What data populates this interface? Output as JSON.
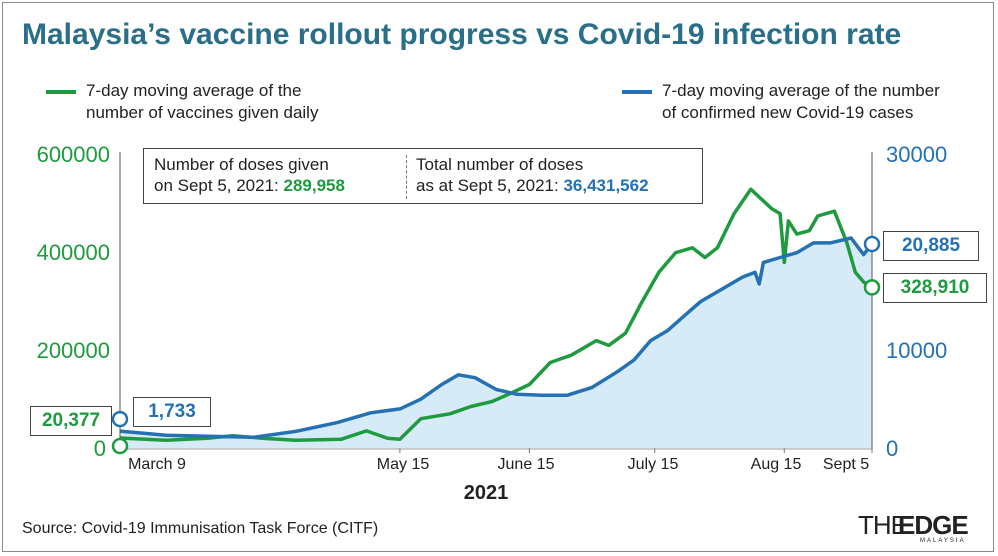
{
  "title": "Malaysia’s vaccine rollout progress vs Covid-19 infection rate",
  "legend": {
    "vaccines_line1": "7-day moving average of the",
    "vaccines_line2": "number of vaccines given daily",
    "cases_line1": "7-day moving average of the number",
    "cases_line2": "of confirmed new Covid-19 cases"
  },
  "infobox": {
    "doses_line1": "Number of doses given",
    "doses_line2_prefix": "on Sept 5, 2021: ",
    "doses_value": "289,958",
    "total_line1": "Total number of doses",
    "total_line2_prefix": "as at Sept 5, 2021: ",
    "total_value": "36,431,562"
  },
  "callouts": {
    "start_vaccines": "20,377",
    "start_cases": "1,733",
    "end_cases": "20,885",
    "end_vaccines": "328,910"
  },
  "year_label": "2021",
  "source": "Source: Covid-19 Immunisation Task Force (CITF)",
  "logo": {
    "the": "THE",
    "edge": "EDGE",
    "sub": "MALAYSIA"
  },
  "colors": {
    "vaccines": "#1f9b3f",
    "cases": "#2471b3",
    "area": "#d6eaf8",
    "title": "#2a6f8a"
  },
  "chart_data": {
    "type": "line",
    "x_ticks": [
      "March 9",
      "May 15",
      "June 15",
      "July 15",
      "Aug 15",
      "Sept 5"
    ],
    "y_left_ticks": [
      "600000",
      "400000",
      "200000",
      "0"
    ],
    "y_right_ticks": [
      "30000",
      "20000",
      "10000",
      "0"
    ],
    "ylim_left": [
      0,
      600000
    ],
    "ylim_right": [
      0,
      30000
    ],
    "series": [
      {
        "name": "7-day moving average of the number of vaccines given daily",
        "axis": "left",
        "points": [
          [
            "2021-03-09",
            20377
          ],
          [
            "2021-03-20",
            16000
          ],
          [
            "2021-03-30",
            20000
          ],
          [
            "2021-04-05",
            25000
          ],
          [
            "2021-04-12",
            20000
          ],
          [
            "2021-04-20",
            16000
          ],
          [
            "2021-05-01",
            18000
          ],
          [
            "2021-05-07",
            35000
          ],
          [
            "2021-05-12",
            20000
          ],
          [
            "2021-05-15",
            18000
          ],
          [
            "2021-05-20",
            60000
          ],
          [
            "2021-05-27",
            70000
          ],
          [
            "2021-06-01",
            85000
          ],
          [
            "2021-06-06",
            95000
          ],
          [
            "2021-06-10",
            110000
          ],
          [
            "2021-06-15",
            130000
          ],
          [
            "2021-06-20",
            175000
          ],
          [
            "2021-06-25",
            190000
          ],
          [
            "2021-07-01",
            220000
          ],
          [
            "2021-07-04",
            210000
          ],
          [
            "2021-07-08",
            235000
          ],
          [
            "2021-07-12",
            300000
          ],
          [
            "2021-07-16",
            360000
          ],
          [
            "2021-07-20",
            400000
          ],
          [
            "2021-07-24",
            410000
          ],
          [
            "2021-07-27",
            390000
          ],
          [
            "2021-07-30",
            410000
          ],
          [
            "2021-08-03",
            480000
          ],
          [
            "2021-08-07",
            530000
          ],
          [
            "2021-08-12",
            490000
          ],
          [
            "2021-08-14",
            480000
          ],
          [
            "2021-08-15",
            380000
          ],
          [
            "2021-08-16",
            465000
          ],
          [
            "2021-08-18",
            438000
          ],
          [
            "2021-08-21",
            445000
          ],
          [
            "2021-08-23",
            475000
          ],
          [
            "2021-08-27",
            485000
          ],
          [
            "2021-08-30",
            420000
          ],
          [
            "2021-09-01",
            360000
          ],
          [
            "2021-09-03",
            340000
          ],
          [
            "2021-09-05",
            328910
          ]
        ]
      },
      {
        "name": "7-day moving average of the number of confirmed new Covid-19 cases",
        "axis": "right",
        "points": [
          [
            "2021-03-09",
            1733
          ],
          [
            "2021-03-20",
            1300
          ],
          [
            "2021-03-30",
            1200
          ],
          [
            "2021-04-10",
            1100
          ],
          [
            "2021-04-20",
            1700
          ],
          [
            "2021-04-30",
            2600
          ],
          [
            "2021-05-08",
            3600
          ],
          [
            "2021-05-15",
            4000
          ],
          [
            "2021-05-20",
            5000
          ],
          [
            "2021-05-25",
            6500
          ],
          [
            "2021-05-29",
            7500
          ],
          [
            "2021-06-02",
            7200
          ],
          [
            "2021-06-07",
            6000
          ],
          [
            "2021-06-12",
            5500
          ],
          [
            "2021-06-18",
            5400
          ],
          [
            "2021-06-24",
            5400
          ],
          [
            "2021-06-30",
            6200
          ],
          [
            "2021-07-06",
            7800
          ],
          [
            "2021-07-10",
            9000
          ],
          [
            "2021-07-14",
            11000
          ],
          [
            "2021-07-18",
            12000
          ],
          [
            "2021-07-22",
            13500
          ],
          [
            "2021-07-26",
            15000
          ],
          [
            "2021-08-01",
            16500
          ],
          [
            "2021-08-05",
            17500
          ],
          [
            "2021-08-08",
            18000
          ],
          [
            "2021-08-09",
            16800
          ],
          [
            "2021-08-10",
            19000
          ],
          [
            "2021-08-14",
            19500
          ],
          [
            "2021-08-18",
            20000
          ],
          [
            "2021-08-22",
            21000
          ],
          [
            "2021-08-26",
            21000
          ],
          [
            "2021-08-31",
            21500
          ],
          [
            "2021-09-03",
            19800
          ],
          [
            "2021-09-05",
            20885
          ]
        ]
      }
    ]
  }
}
